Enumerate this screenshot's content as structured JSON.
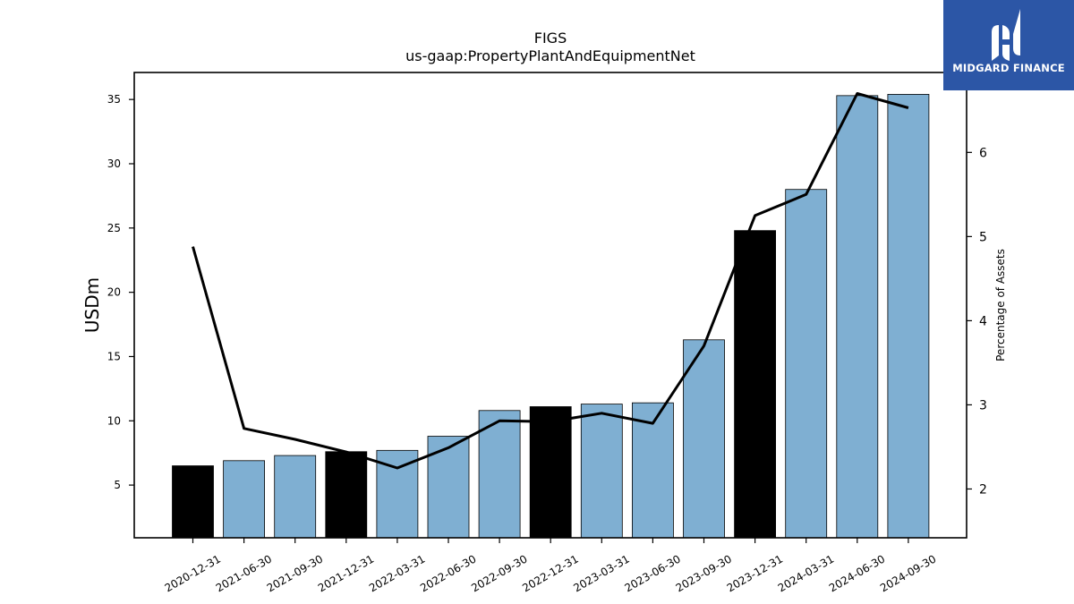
{
  "chart_data": {
    "type": "bar",
    "title": "FIGS",
    "subtitle": "us-gaap:PropertyPlantAndEquipmentNet",
    "ylabel": "USDm",
    "y2label": "Percentage of Assets",
    "categories": [
      "2020-12-31",
      "2021-06-30",
      "2021-09-30",
      "2021-12-31",
      "2022-03-31",
      "2022-06-30",
      "2022-09-30",
      "2022-12-31",
      "2023-03-31",
      "2023-06-30",
      "2023-09-30",
      "2023-12-31",
      "2024-03-31",
      "2024-06-30",
      "2024-09-30"
    ],
    "series": [
      {
        "type": "bar",
        "axis": "left",
        "values": [
          6.5,
          6.9,
          7.3,
          7.6,
          7.7,
          8.8,
          10.8,
          11.1,
          11.3,
          11.4,
          16.3,
          24.8,
          28.0,
          35.3,
          35.4
        ],
        "colors": [
          "#000000",
          "#7fafd2",
          "#7fafd2",
          "#000000",
          "#7fafd2",
          "#7fafd2",
          "#7fafd2",
          "#000000",
          "#7fafd2",
          "#7fafd2",
          "#7fafd2",
          "#000000",
          "#7fafd2",
          "#7fafd2",
          "#7fafd2"
        ]
      },
      {
        "type": "line",
        "axis": "right",
        "color": "#000000",
        "values": [
          4.88,
          2.72,
          2.59,
          2.44,
          2.25,
          2.49,
          2.81,
          2.8,
          2.9,
          2.78,
          3.7,
          5.25,
          5.5,
          6.7,
          6.53
        ]
      }
    ],
    "ylim": [
      0.9,
      37.1
    ],
    "yticks": [
      5,
      10,
      15,
      20,
      25,
      30,
      35
    ],
    "y2lim": [
      1.42,
      6.95
    ],
    "y2ticks": [
      2,
      3,
      4,
      5,
      6
    ],
    "grid": false
  },
  "logo": {
    "text": "MIDGARD FINANCE"
  }
}
